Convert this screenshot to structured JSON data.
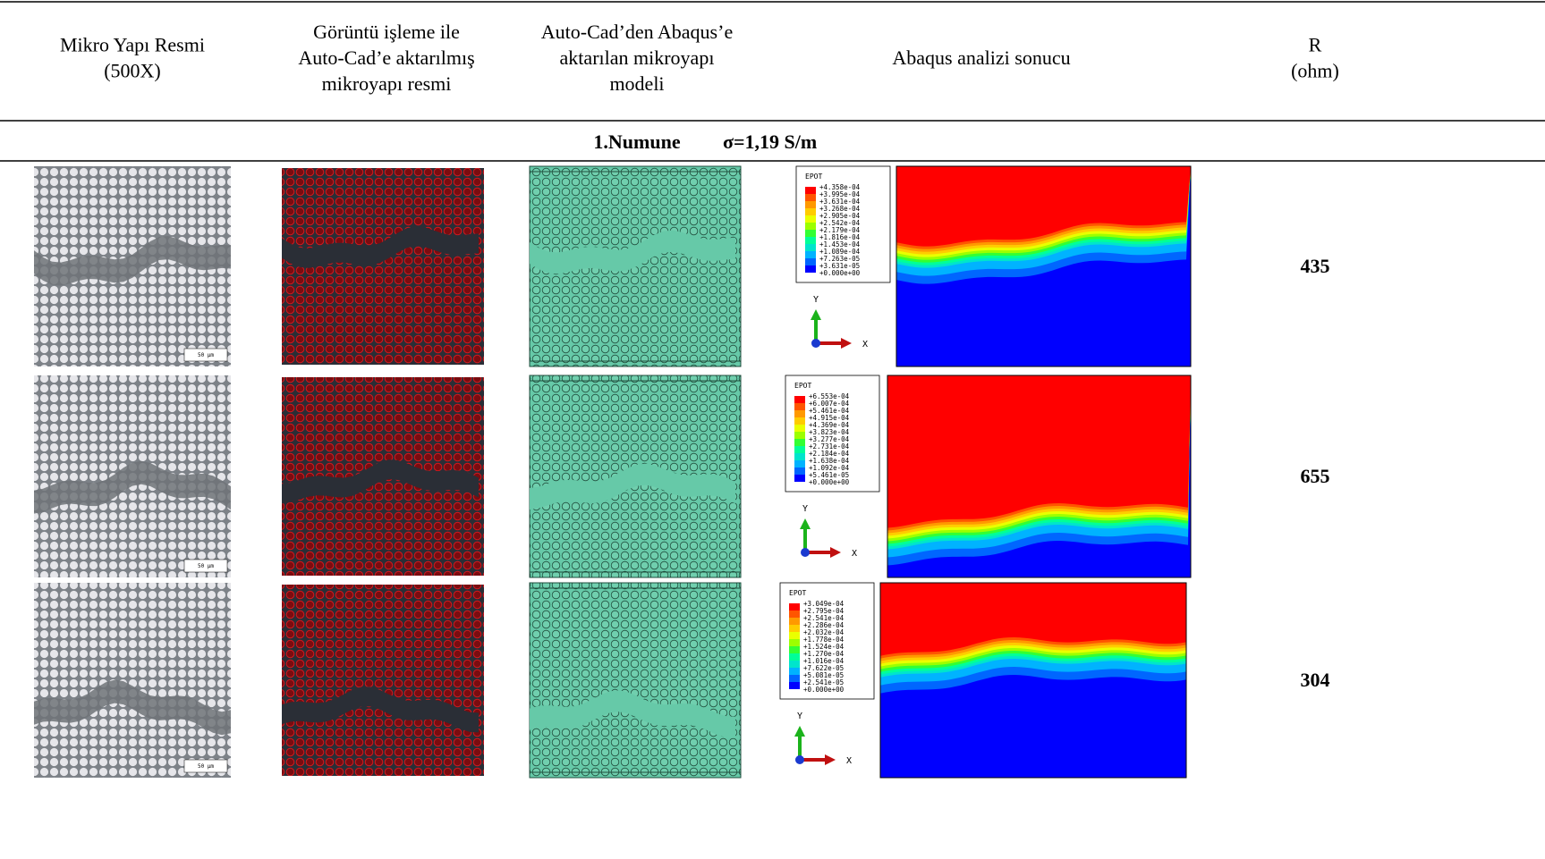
{
  "header": {
    "columns": [
      [
        "Mikro Yapı Resmi",
        "(500X)"
      ],
      [
        "Görüntü işleme ile",
        "Auto-Cad’e aktarılmış",
        "mikroyapı resmi"
      ],
      [
        "Auto-Cad’den Abaqus’e",
        "aktarılan mikroyapı",
        "modeli"
      ],
      [
        "Abaqus analizi sonucu"
      ],
      [
        "R",
        "(ohm)"
      ]
    ]
  },
  "section": {
    "label": "1.Numune",
    "sigma": "σ=1,19 S/m"
  },
  "rows": [
    {
      "scale_bar": "50 µm",
      "legend": {
        "title": "EPOT",
        "values": [
          "+4.358e-04",
          "+3.995e-04",
          "+3.631e-04",
          "+3.268e-04",
          "+2.905e-04",
          "+2.542e-04",
          "+2.179e-04",
          "+1.816e-04",
          "+1.453e-04",
          "+1.089e-04",
          "+7.263e-05",
          "+3.631e-05",
          "+0.000e+00"
        ]
      },
      "axes": {
        "y": "Y",
        "x": "X"
      },
      "R": 435
    },
    {
      "scale_bar": "50 µm",
      "legend": {
        "title": "EPOT",
        "values": [
          "+6.553e-04",
          "+6.007e-04",
          "+5.461e-04",
          "+4.915e-04",
          "+4.369e-04",
          "+3.823e-04",
          "+3.277e-04",
          "+2.731e-04",
          "+2.184e-04",
          "+1.638e-04",
          "+1.092e-04",
          "+5.461e-05",
          "+0.000e+00"
        ]
      },
      "axes": {
        "y": "Y",
        "x": "X"
      },
      "R": 655
    },
    {
      "scale_bar": "50 µm",
      "legend": {
        "title": "EPOT",
        "values": [
          "+3.049e-04",
          "+2.795e-04",
          "+2.541e-04",
          "+2.286e-04",
          "+2.032e-04",
          "+1.778e-04",
          "+1.524e-04",
          "+1.270e-04",
          "+1.016e-04",
          "+7.622e-05",
          "+5.081e-05",
          "+2.541e-05",
          "+0.000e+00"
        ]
      },
      "axes": {
        "y": "Y",
        "x": "X"
      },
      "R": 304
    }
  ]
}
